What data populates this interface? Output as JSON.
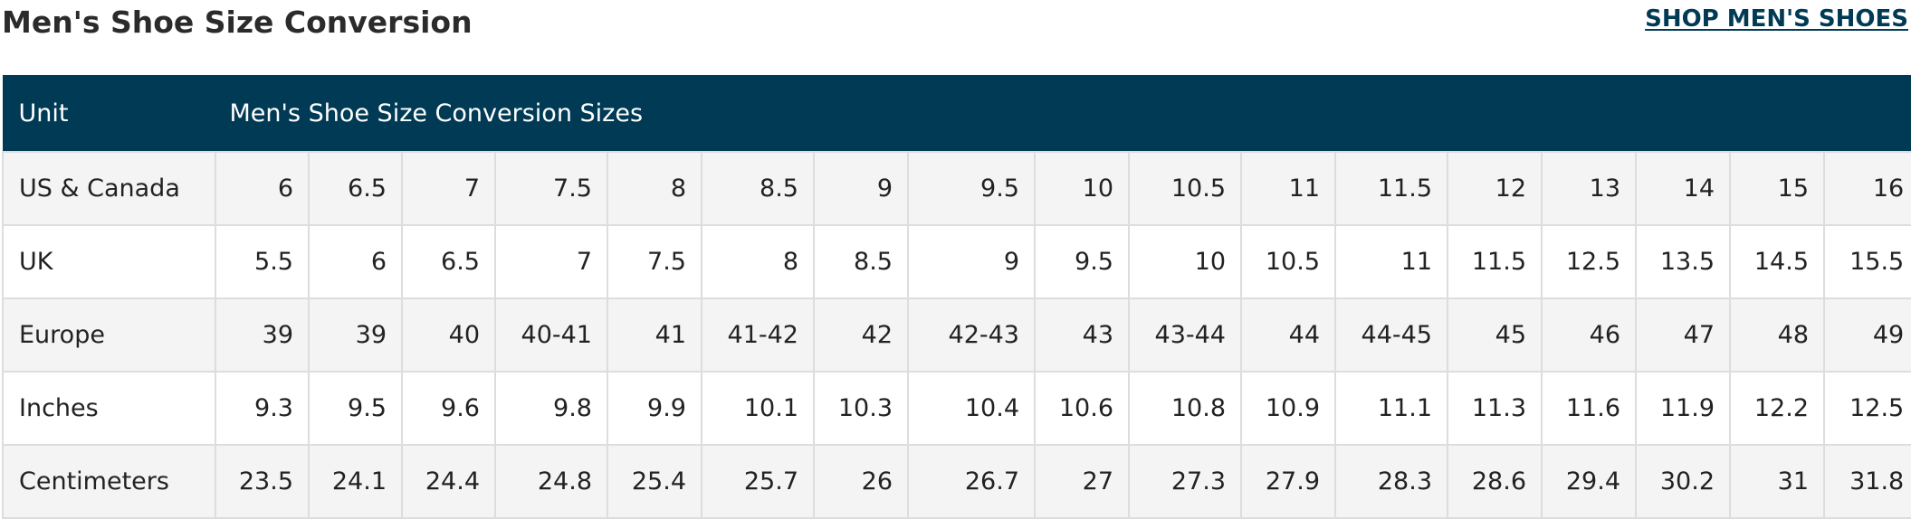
{
  "page": {
    "title": "Men's Shoe Size Conversion",
    "shop_link": "SHOP MEN'S SHOES"
  },
  "table": {
    "header_unit": "Unit",
    "header_sizes": "Men's Shoe Size Conversion Sizes",
    "rows": [
      {
        "unit": "US & Canada",
        "values": [
          "6",
          "6.5",
          "7",
          "7.5",
          "8",
          "8.5",
          "9",
          "9.5",
          "10",
          "10.5",
          "11",
          "11.5",
          "12",
          "13",
          "14",
          "15",
          "16"
        ]
      },
      {
        "unit": "UK",
        "values": [
          "5.5",
          "6",
          "6.5",
          "7",
          "7.5",
          "8",
          "8.5",
          "9",
          "9.5",
          "10",
          "10.5",
          "11",
          "11.5",
          "12.5",
          "13.5",
          "14.5",
          "15.5"
        ]
      },
      {
        "unit": "Europe",
        "values": [
          "39",
          "39",
          "40",
          "40-41",
          "41",
          "41-42",
          "42",
          "42-43",
          "43",
          "43-44",
          "44",
          "44-45",
          "45",
          "46",
          "47",
          "48",
          "49"
        ]
      },
      {
        "unit": "Inches",
        "values": [
          "9.3",
          "9.5",
          "9.6",
          "9.8",
          "9.9",
          "10.1",
          "10.3",
          "10.4",
          "10.6",
          "10.8",
          "10.9",
          "11.1",
          "11.3",
          "11.6",
          "11.9",
          "12.2",
          "12.5"
        ]
      },
      {
        "unit": "Centimeters",
        "values": [
          "23.5",
          "24.1",
          "24.4",
          "24.8",
          "25.4",
          "25.7",
          "26",
          "26.7",
          "27",
          "27.3",
          "27.9",
          "28.3",
          "28.6",
          "29.4",
          "30.2",
          "31",
          "31.8"
        ]
      }
    ]
  },
  "colors": {
    "header_bg": "#003a54",
    "link": "#003a54",
    "stripe": "#f4f4f4",
    "border": "#dddddd"
  }
}
